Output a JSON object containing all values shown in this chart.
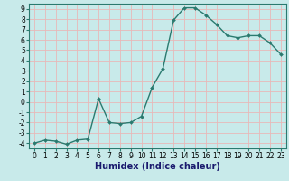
{
  "xlabel": "Humidex (Indice chaleur)",
  "ylabel": "",
  "x": [
    0,
    1,
    2,
    3,
    4,
    5,
    6,
    7,
    8,
    9,
    10,
    11,
    12,
    13,
    14,
    15,
    16,
    17,
    18,
    19,
    20,
    21,
    22,
    23
  ],
  "y": [
    -4.0,
    -3.7,
    -3.8,
    -4.1,
    -3.7,
    -3.6,
    0.3,
    -2.0,
    -2.1,
    -2.0,
    -1.4,
    1.4,
    3.2,
    7.9,
    9.1,
    9.1,
    8.4,
    7.5,
    6.4,
    6.2,
    6.4,
    6.4,
    5.7,
    4.6
  ],
  "line_color": "#2a7a6f",
  "marker": "D",
  "marker_size": 2.0,
  "bg_color": "#c8eaea",
  "grid_color": "#e8b8b8",
  "ylim": [
    -4.5,
    9.5
  ],
  "xlim": [
    -0.5,
    23.5
  ],
  "yticks": [
    -4,
    -3,
    -2,
    -1,
    0,
    1,
    2,
    3,
    4,
    5,
    6,
    7,
    8,
    9
  ],
  "xticks": [
    0,
    1,
    2,
    3,
    4,
    5,
    6,
    7,
    8,
    9,
    10,
    11,
    12,
    13,
    14,
    15,
    16,
    17,
    18,
    19,
    20,
    21,
    22,
    23
  ],
  "xlabel_fontsize": 7,
  "tick_fontsize": 5.5,
  "line_width": 1.0,
  "xlabel_color": "#1a1a6e",
  "spine_color": "#2a7a6f"
}
